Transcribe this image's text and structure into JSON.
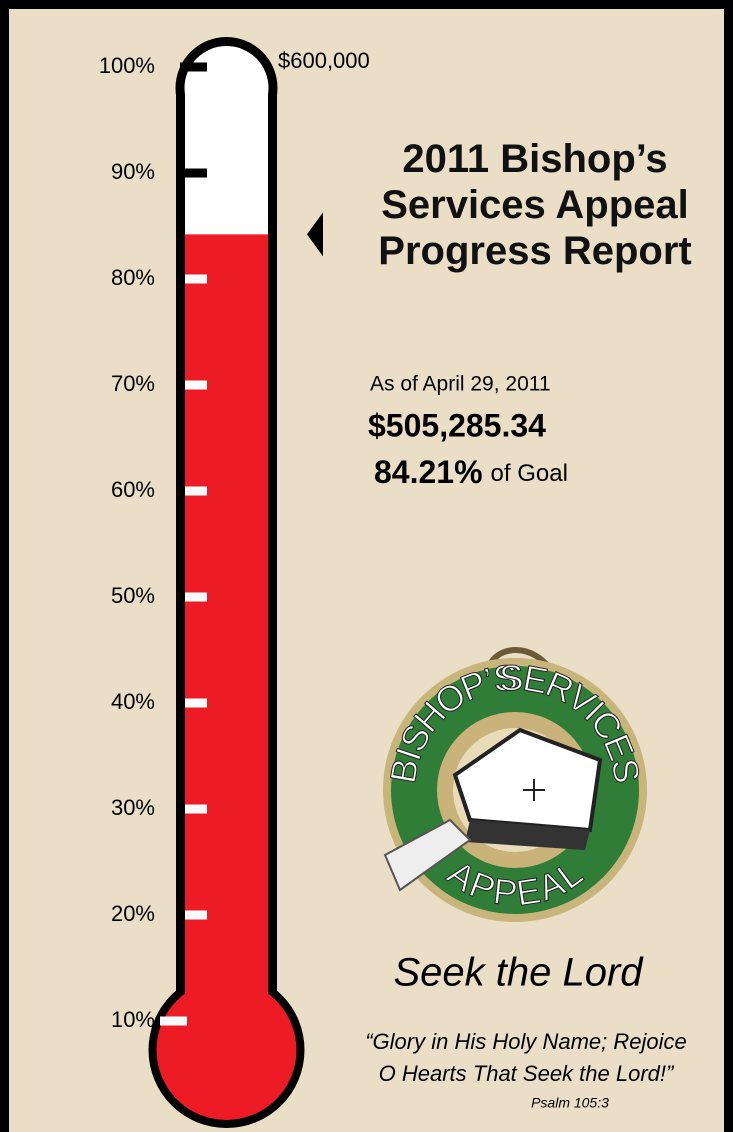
{
  "chart_data": {
    "type": "thermometer",
    "title": "2011 Bishop’s Services Appeal Progress Report",
    "goal_label": "$600,000",
    "date_label": "As of April 29, 2011",
    "amount_label": "$505,285.34",
    "value": 84.21,
    "value_label": "84.21%",
    "value_suffix": "of Goal",
    "color": "#ed1c24",
    "ylim": [
      0,
      100
    ],
    "yticks": [
      {
        "value": 100,
        "label": "100%"
      },
      {
        "value": 90,
        "label": "90%"
      },
      {
        "value": 80,
        "label": "80%"
      },
      {
        "value": 70,
        "label": "70%"
      },
      {
        "value": 60,
        "label": "60%"
      },
      {
        "value": 50,
        "label": "50%"
      },
      {
        "value": 40,
        "label": "40%"
      },
      {
        "value": 30,
        "label": "30%"
      },
      {
        "value": 20,
        "label": "20%"
      },
      {
        "value": 10,
        "label": "10%"
      }
    ]
  },
  "logo": {
    "top_left": "BISHOP’S",
    "top_right": "SERVICES",
    "bottom": "APPEAL"
  },
  "motto": "Seek the Lord",
  "quote": [
    "“Glory in His Holy Name; Rejoice",
    "O Hearts That Seek the Lord!”"
  ],
  "citation": "Psalm 105:3"
}
